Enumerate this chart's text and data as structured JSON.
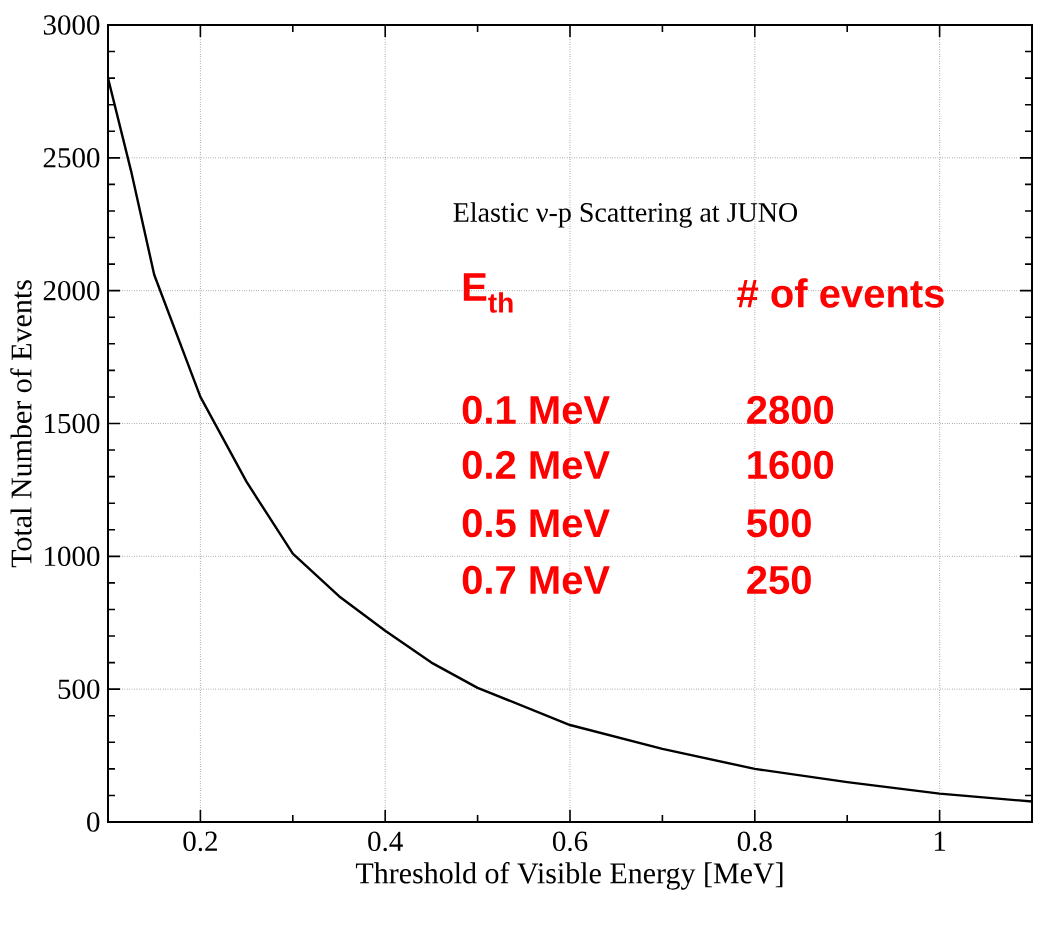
{
  "chart_data": {
    "type": "line",
    "xlabel": "Threshold of Visible Energy [MeV]",
    "ylabel": "Total Number of Events",
    "x": [
      0.1,
      0.125,
      0.15,
      0.2,
      0.25,
      0.3,
      0.35,
      0.4,
      0.45,
      0.5,
      0.6,
      0.7,
      0.8,
      0.9,
      1.0,
      1.1
    ],
    "series": [
      {
        "color": "#000000",
        "values": [
          2800,
          2450,
          2060,
          1600,
          1280,
          1010,
          850,
          720,
          600,
          505,
          365,
          275,
          200,
          150,
          107,
          77
        ]
      }
    ],
    "xlim": [
      0.1,
      1.1
    ],
    "ylim": [
      0,
      3000
    ],
    "xticks": [
      0.2,
      0.4,
      0.6,
      0.8,
      1
    ],
    "yticks": [
      0,
      500,
      1000,
      1500,
      2000,
      2500,
      3000
    ],
    "grid": true,
    "marker": "none",
    "line_style": "solid",
    "annotations": [
      "Elastic ν-p Scattering at JUNO",
      "E$_{th}$",
      "# of events",
      "0.1 MeV",
      "2800",
      "0.2 MeV",
      "1600",
      "0.5 MeV",
      "500",
      "0.7 MeV",
      "250"
    ]
  }
}
